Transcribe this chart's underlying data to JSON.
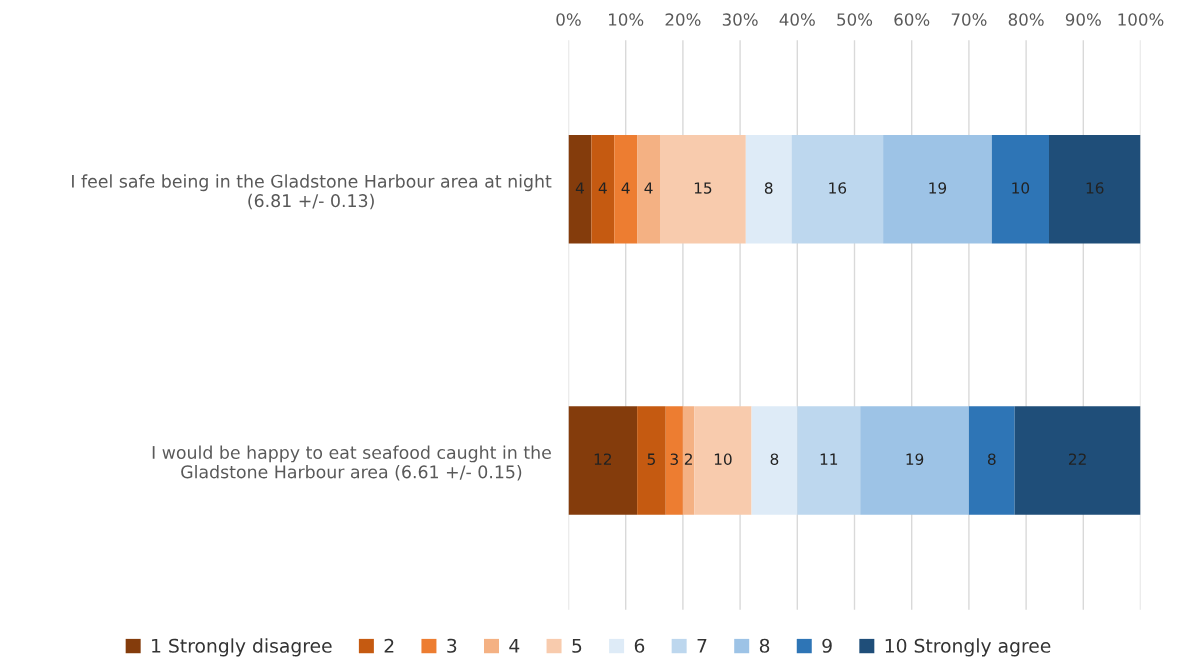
{
  "chart_data": {
    "type": "bar",
    "orientation": "horizontal",
    "stacked": true,
    "categories": [
      "I feel safe being in the Gladstone Harbour area at night\n(6.81 +/- 0.13)",
      "I would be happy to eat seafood caught in the\nGladstone Harbour area (6.61 +/- 0.15)"
    ],
    "series": [
      {
        "name": "1 Strongly disagree",
        "color": "#843c0c",
        "values": [
          4,
          12
        ]
      },
      {
        "name": "2",
        "color": "#c55a11",
        "values": [
          4,
          5
        ]
      },
      {
        "name": "3",
        "color": "#ed7d31",
        "values": [
          4,
          3
        ]
      },
      {
        "name": "4",
        "color": "#f4b183",
        "values": [
          4,
          2
        ]
      },
      {
        "name": "5",
        "color": "#f8cbad",
        "values": [
          15,
          10
        ]
      },
      {
        "name": "6",
        "color": "#deebf7",
        "values": [
          8,
          8
        ]
      },
      {
        "name": "7",
        "color": "#bdd7ee",
        "values": [
          16,
          11
        ]
      },
      {
        "name": "8",
        "color": "#9dc3e6",
        "values": [
          19,
          19
        ]
      },
      {
        "name": "9",
        "color": "#2e75b6",
        "values": [
          10,
          8
        ]
      },
      {
        "name": "10 Strongly agree",
        "color": "#1f4e79",
        "values": [
          16,
          22
        ]
      }
    ],
    "xlim": [
      0,
      100
    ],
    "xticks": [
      {
        "value": 0,
        "label": "0%"
      },
      {
        "value": 10,
        "label": "10%"
      },
      {
        "value": 20,
        "label": "20%"
      },
      {
        "value": 30,
        "label": "30%"
      },
      {
        "value": 40,
        "label": "40%"
      },
      {
        "value": 50,
        "label": "50%"
      },
      {
        "value": 60,
        "label": "60%"
      },
      {
        "value": 70,
        "label": "70%"
      },
      {
        "value": 80,
        "label": "80%"
      },
      {
        "value": 90,
        "label": "90%"
      },
      {
        "value": 100,
        "label": "100%"
      }
    ],
    "grid": "x",
    "legend": "bottom",
    "data_labels": true
  }
}
